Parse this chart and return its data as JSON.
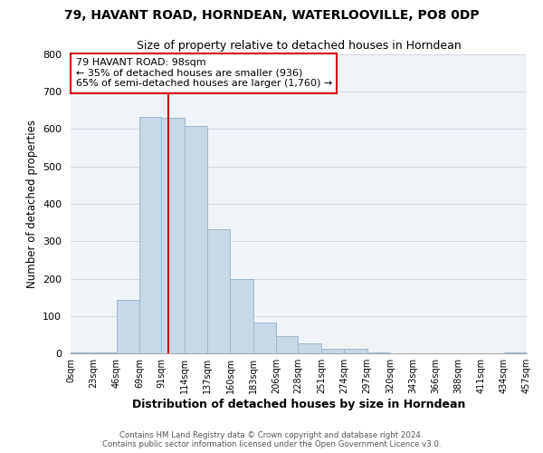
{
  "title": "79, HAVANT ROAD, HORNDEAN, WATERLOOVILLE, PO8 0DP",
  "subtitle": "Size of property relative to detached houses in Horndean",
  "xlabel": "Distribution of detached houses by size in Horndean",
  "ylabel": "Number of detached properties",
  "bar_edges": [
    0,
    23,
    46,
    69,
    91,
    114,
    137,
    160,
    183,
    206,
    228,
    251,
    274,
    297,
    320,
    343,
    366,
    388,
    411,
    434,
    457
  ],
  "bar_heights": [
    3,
    3,
    143,
    632,
    631,
    608,
    332,
    200,
    83,
    46,
    27,
    12,
    12,
    2,
    0,
    0,
    0,
    0,
    0,
    3
  ],
  "bar_color": "#c8d8e8",
  "bar_edge_color": "#a0b8cc",
  "property_line_x": 98,
  "property_line_color": "#cc0000",
  "ylim": [
    0,
    800
  ],
  "annotation_line1": "79 HAVANT ROAD: 98sqm",
  "annotation_line2": "← 35% of detached houses are smaller (936)",
  "annotation_line3": "65% of semi-detached houses are larger (1,760) →",
  "annotation_box_color": "#ffffff",
  "annotation_box_edge": "#cc0000",
  "tick_labels": [
    "0sqm",
    "23sqm",
    "46sqm",
    "69sqm",
    "91sqm",
    "114sqm",
    "137sqm",
    "160sqm",
    "183sqm",
    "206sqm",
    "228sqm",
    "251sqm",
    "274sqm",
    "297sqm",
    "320sqm",
    "343sqm",
    "366sqm",
    "388sqm",
    "411sqm",
    "434sqm",
    "457sqm"
  ],
  "footer_line1": "Contains HM Land Registry data © Crown copyright and database right 2024.",
  "footer_line2": "Contains public sector information licensed under the Open Government Licence v3.0.",
  "bg_color": "#f0f4f8"
}
